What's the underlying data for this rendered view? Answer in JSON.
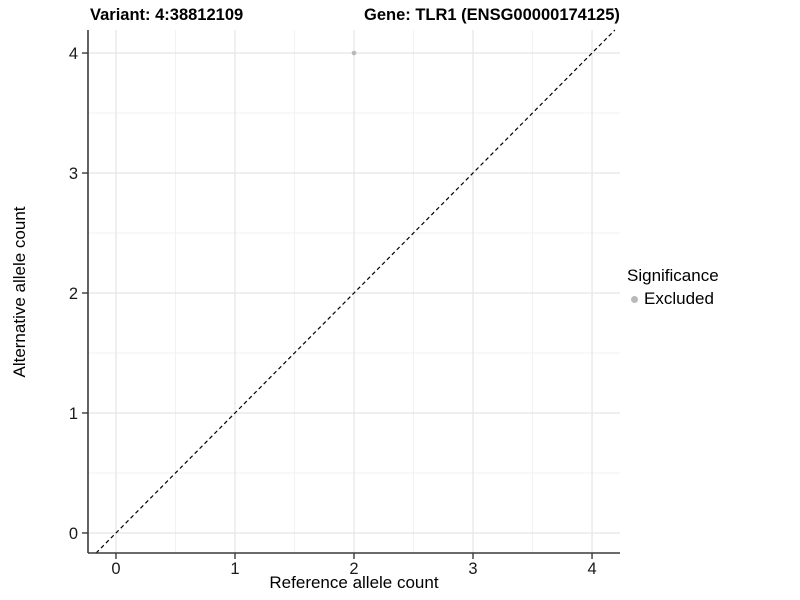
{
  "chart_data": {
    "type": "scatter",
    "titles": {
      "left": "Variant: 4:38812109",
      "right": "Gene: TLR1 (ENSG00000174125)"
    },
    "xlabel": "Reference allele count",
    "ylabel": "Alternative allele count",
    "xlim": [
      -0.235,
      4.235
    ],
    "ylim": [
      -0.167,
      4.192
    ],
    "x_ticks": [
      0,
      1,
      2,
      3,
      4
    ],
    "y_ticks": [
      0,
      1,
      2,
      3,
      4
    ],
    "x_minor": [
      0.5,
      1.5,
      2.5,
      3.5
    ],
    "y_minor": [
      0.5,
      1.5,
      2.5,
      3.5
    ],
    "grid": "major+minor",
    "reference_line": {
      "kind": "identity y=x",
      "style": "dashed",
      "color": "#000000"
    },
    "series": [
      {
        "name": "Excluded",
        "color": "#b9b9b9",
        "points": [
          {
            "x": 2,
            "y": 4
          }
        ]
      }
    ],
    "legend": {
      "title": "Significance",
      "position": "right",
      "items": [
        {
          "label": "Excluded",
          "color": "#b9b9b9"
        }
      ]
    },
    "colors": {
      "grid_major": "#e5e5e5",
      "grid_minor": "#f2f2f2",
      "axis": "#3a3a3a",
      "tick_text": "#1a1a1a",
      "background": "#ffffff"
    }
  }
}
